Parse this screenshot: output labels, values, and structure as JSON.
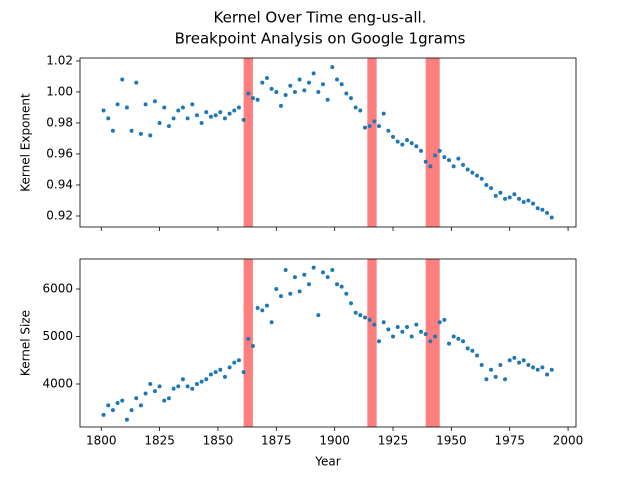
{
  "suptitle": [
    "Kernel Over Time eng-us-all.",
    "Breakpoint Analysis on Google 1grams"
  ],
  "chart_data": [
    {
      "type": "scatter",
      "ylabel": "Kernel Exponent",
      "color": "#1f77b4",
      "x": [
        1801,
        1803,
        1805,
        1807,
        1809,
        1811,
        1813,
        1815,
        1817,
        1819,
        1821,
        1823,
        1825,
        1827,
        1829,
        1831,
        1833,
        1835,
        1837,
        1839,
        1841,
        1843,
        1845,
        1847,
        1849,
        1851,
        1853,
        1855,
        1857,
        1859,
        1861,
        1863,
        1865,
        1867,
        1869,
        1871,
        1873,
        1875,
        1877,
        1879,
        1881,
        1883,
        1885,
        1887,
        1889,
        1891,
        1893,
        1895,
        1897,
        1899,
        1901,
        1903,
        1905,
        1907,
        1909,
        1911,
        1913,
        1915,
        1917,
        1919,
        1921,
        1923,
        1925,
        1927,
        1929,
        1931,
        1933,
        1935,
        1937,
        1939,
        1941,
        1943,
        1945,
        1947,
        1949,
        1951,
        1953,
        1955,
        1957,
        1959,
        1961,
        1963,
        1965,
        1967,
        1969,
        1971,
        1973,
        1975,
        1977,
        1979,
        1981,
        1983,
        1985,
        1987,
        1989,
        1991,
        1993
      ],
      "y": [
        0.988,
        0.983,
        0.975,
        0.992,
        1.008,
        0.99,
        0.975,
        1.006,
        0.973,
        0.992,
        0.972,
        0.994,
        0.98,
        0.99,
        0.978,
        0.983,
        0.988,
        0.99,
        0.983,
        0.992,
        0.985,
        0.98,
        0.987,
        0.984,
        0.985,
        0.987,
        0.983,
        0.986,
        0.988,
        0.99,
        0.982,
        0.999,
        0.996,
        0.995,
        1.006,
        1.009,
        1.002,
        1.0,
        0.991,
        0.998,
        1.004,
        1.0,
        1.008,
        1.001,
        1.006,
        1.012,
        1.0,
        1.005,
        0.995,
        1.016,
        1.008,
        1.005,
        0.999,
        0.996,
        0.99,
        0.988,
        0.977,
        0.978,
        0.981,
        0.978,
        0.986,
        0.975,
        0.971,
        0.968,
        0.966,
        0.969,
        0.967,
        0.965,
        0.962,
        0.955,
        0.952,
        0.959,
        0.962,
        0.958,
        0.956,
        0.952,
        0.957,
        0.953,
        0.95,
        0.948,
        0.946,
        0.944,
        0.94,
        0.938,
        0.933,
        0.935,
        0.931,
        0.932,
        0.934,
        0.931,
        0.929,
        0.93,
        0.928,
        0.925,
        0.924,
        0.922,
        0.919
      ],
      "xlim": [
        1790.9,
        2003.4
      ],
      "ylim": [
        0.9129,
        1.0219
      ],
      "xticks": [
        1800,
        1825,
        1850,
        1875,
        1900,
        1925,
        1950,
        1975,
        2000
      ],
      "xtick_labels": false,
      "yticks": [
        0.92,
        0.94,
        0.96,
        0.98,
        {
          "value": 1,
          "label": "1.00"
        },
        1.02
      ],
      "spans": [
        [
          1861,
          1865
        ],
        [
          1914,
          1918
        ],
        [
          1939,
          1945
        ]
      ],
      "span_color": "#ff0000"
    },
    {
      "type": "scatter",
      "ylabel": "Kernel Size",
      "xlabel": "Year",
      "color": "#1f77b4",
      "x": [
        1801,
        1803,
        1805,
        1807,
        1809,
        1811,
        1813,
        1815,
        1817,
        1819,
        1821,
        1823,
        1825,
        1827,
        1829,
        1831,
        1833,
        1835,
        1837,
        1839,
        1841,
        1843,
        1845,
        1847,
        1849,
        1851,
        1853,
        1855,
        1857,
        1859,
        1861,
        1863,
        1865,
        1867,
        1869,
        1871,
        1873,
        1875,
        1877,
        1879,
        1881,
        1883,
        1885,
        1887,
        1889,
        1891,
        1893,
        1895,
        1897,
        1899,
        1901,
        1903,
        1905,
        1907,
        1909,
        1911,
        1913,
        1915,
        1917,
        1919,
        1921,
        1923,
        1925,
        1927,
        1929,
        1931,
        1933,
        1935,
        1937,
        1939,
        1941,
        1943,
        1945,
        1947,
        1949,
        1951,
        1953,
        1955,
        1957,
        1959,
        1961,
        1963,
        1965,
        1967,
        1969,
        1971,
        1973,
        1975,
        1977,
        1979,
        1981,
        1983,
        1985,
        1987,
        1989,
        1991,
        1993
      ],
      "y": [
        3350,
        3550,
        3450,
        3600,
        3650,
        3250,
        3450,
        3700,
        3550,
        3800,
        4000,
        3850,
        3950,
        3650,
        3700,
        3900,
        3950,
        4100,
        3950,
        3900,
        4000,
        4050,
        4100,
        4200,
        4250,
        4300,
        4150,
        4350,
        4450,
        4500,
        4250,
        4950,
        4800,
        5600,
        5550,
        5650,
        5300,
        6000,
        5850,
        6400,
        5900,
        6250,
        5950,
        6300,
        6100,
        6450,
        5450,
        6350,
        6250,
        6400,
        6100,
        6050,
        5900,
        5700,
        5500,
        5450,
        5400,
        5350,
        5250,
        4900,
        5300,
        5150,
        5000,
        5200,
        5100,
        5200,
        5000,
        5250,
        5100,
        5050,
        4900,
        5000,
        5300,
        5350,
        4850,
        5000,
        4950,
        4900,
        4750,
        4700,
        4600,
        4400,
        4100,
        4300,
        4150,
        4400,
        4100,
        4500,
        4550,
        4450,
        4500,
        4400,
        4350,
        4300,
        4350,
        4200,
        4300
      ],
      "xlim": [
        1790.9,
        2003.4
      ],
      "ylim": [
        3095,
        6632
      ],
      "xticks": [
        1800,
        1825,
        1850,
        1875,
        1900,
        1925,
        1950,
        1975,
        2000
      ],
      "xtick_labels": true,
      "yticks": [
        4000,
        5000,
        6000
      ],
      "spans": [
        [
          1861,
          1865
        ],
        [
          1914,
          1918
        ],
        [
          1939,
          1945
        ]
      ],
      "span_color": "#ff0000"
    }
  ]
}
